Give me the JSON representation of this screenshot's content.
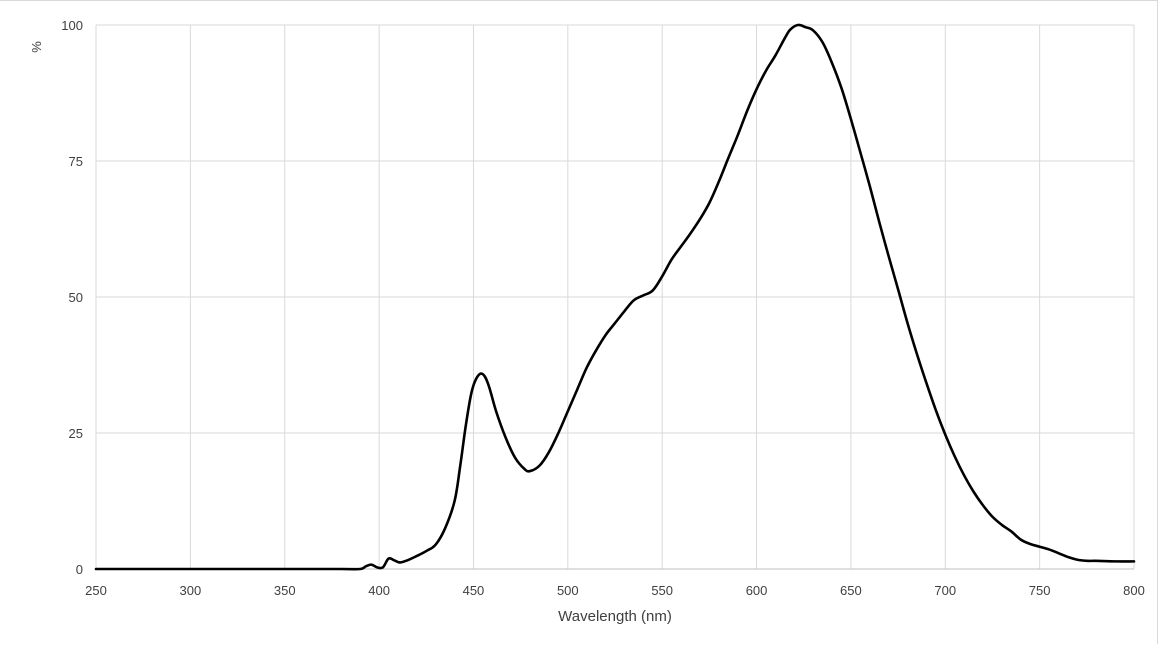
{
  "chart_data": {
    "type": "line",
    "title": "",
    "xlabel": "Wavelength (nm)",
    "ylabel": "%",
    "xlim": [
      250,
      800
    ],
    "ylim": [
      0,
      100
    ],
    "x_ticks": [
      250,
      300,
      350,
      400,
      450,
      500,
      550,
      600,
      650,
      700,
      750,
      800
    ],
    "y_ticks": [
      0,
      25,
      50,
      75,
      100
    ],
    "grid": true,
    "legend": "none",
    "series": [
      {
        "color": "#000000",
        "points": [
          [
            250,
            0.0
          ],
          [
            300,
            0.0
          ],
          [
            350,
            0.0
          ],
          [
            380,
            0.0
          ],
          [
            390,
            0.0
          ],
          [
            393,
            0.5
          ],
          [
            396,
            0.8
          ],
          [
            399,
            0.3
          ],
          [
            402,
            0.3
          ],
          [
            405,
            1.9
          ],
          [
            408,
            1.6
          ],
          [
            411,
            1.2
          ],
          [
            415,
            1.6
          ],
          [
            420,
            2.4
          ],
          [
            425,
            3.3
          ],
          [
            430,
            4.5
          ],
          [
            435,
            7.5
          ],
          [
            440,
            12.5
          ],
          [
            443,
            19.0
          ],
          [
            446,
            26.5
          ],
          [
            449,
            32.5
          ],
          [
            452,
            35.3
          ],
          [
            455,
            35.8
          ],
          [
            458,
            33.8
          ],
          [
            462,
            29.0
          ],
          [
            467,
            24.2
          ],
          [
            472,
            20.5
          ],
          [
            477,
            18.4
          ],
          [
            480,
            18.0
          ],
          [
            485,
            19.0
          ],
          [
            490,
            21.5
          ],
          [
            495,
            25.0
          ],
          [
            500,
            29.0
          ],
          [
            505,
            33.0
          ],
          [
            510,
            37.0
          ],
          [
            515,
            40.2
          ],
          [
            520,
            43.0
          ],
          [
            525,
            45.2
          ],
          [
            530,
            47.4
          ],
          [
            535,
            49.4
          ],
          [
            540,
            50.3
          ],
          [
            545,
            51.2
          ],
          [
            550,
            53.8
          ],
          [
            555,
            56.9
          ],
          [
            560,
            59.3
          ],
          [
            565,
            61.7
          ],
          [
            570,
            64.3
          ],
          [
            575,
            67.3
          ],
          [
            580,
            71.2
          ],
          [
            585,
            75.5
          ],
          [
            590,
            79.7
          ],
          [
            595,
            84.2
          ],
          [
            600,
            88.2
          ],
          [
            605,
            91.6
          ],
          [
            610,
            94.4
          ],
          [
            615,
            97.6
          ],
          [
            618,
            99.2
          ],
          [
            622,
            100.0
          ],
          [
            626,
            99.6
          ],
          [
            630,
            99.0
          ],
          [
            635,
            96.8
          ],
          [
            640,
            93.0
          ],
          [
            645,
            88.4
          ],
          [
            650,
            82.7
          ],
          [
            655,
            76.6
          ],
          [
            660,
            70.4
          ],
          [
            665,
            63.8
          ],
          [
            670,
            57.5
          ],
          [
            675,
            51.4
          ],
          [
            680,
            45.2
          ],
          [
            685,
            39.5
          ],
          [
            690,
            34.2
          ],
          [
            695,
            29.2
          ],
          [
            700,
            24.7
          ],
          [
            705,
            20.7
          ],
          [
            710,
            17.2
          ],
          [
            715,
            14.2
          ],
          [
            720,
            11.7
          ],
          [
            725,
            9.6
          ],
          [
            730,
            8.1
          ],
          [
            735,
            6.9
          ],
          [
            740,
            5.4
          ],
          [
            745,
            4.6
          ],
          [
            750,
            4.1
          ],
          [
            755,
            3.6
          ],
          [
            760,
            2.9
          ],
          [
            765,
            2.2
          ],
          [
            770,
            1.7
          ],
          [
            775,
            1.5
          ],
          [
            780,
            1.5
          ],
          [
            790,
            1.4
          ],
          [
            800,
            1.4
          ]
        ]
      }
    ]
  }
}
